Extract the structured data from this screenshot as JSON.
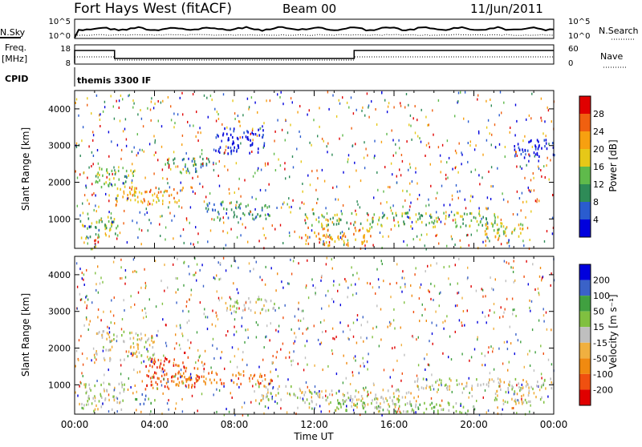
{
  "header": {
    "station": "Fort Hays West (fitACF)",
    "beam": "Beam 00",
    "date": "11/Jun/2011"
  },
  "noise_panel": {
    "left_label": "N.Sky",
    "right_label": "N.Search",
    "left_ticks": [
      "10^5",
      "10^0"
    ],
    "right_ticks": [
      "10^5",
      "10^0"
    ]
  },
  "freq_panel": {
    "left_label_top": "Freq.",
    "left_label_bottom": "[MHz]",
    "right_label": "Nave",
    "left_ticks": [
      "18",
      "8"
    ],
    "right_ticks": [
      "60",
      "0"
    ],
    "cpid_label": "CPID",
    "cpid_text": "themis 3300 IF"
  },
  "colors": {
    "power": [
      "#0000dd",
      "#2a5ccf",
      "#2e8b57",
      "#5fba4b",
      "#e6c818",
      "#f7a010",
      "#f06010",
      "#e00000"
    ],
    "velocity": [
      "#e00000",
      "#f05010",
      "#f08a10",
      "#f0b040",
      "#bfbfbf",
      "#80c040",
      "#40a040",
      "#3a62c8",
      "#0000dd"
    ]
  },
  "chart_data": [
    {
      "type": "heatmap",
      "name": "power",
      "ylabel": "Slant Range [km]",
      "yticks": [
        "1000",
        "2000",
        "3000",
        "4000"
      ],
      "ylim": [
        200,
        4500
      ],
      "xlim": [
        0,
        24
      ],
      "colorbar_label": "Power [dB]",
      "colorbar_ticks": [
        "4",
        "8",
        "12",
        "16",
        "20",
        "24",
        "28"
      ],
      "colorbar_range": [
        0,
        32
      ],
      "bands": [
        {
          "t0": 0.2,
          "t1": 1.2,
          "r0": 300,
          "r1": 500,
          "level": 7
        },
        {
          "t0": 0.2,
          "t1": 2.2,
          "r0": 500,
          "r1": 1200,
          "level": 3
        },
        {
          "t0": 1.0,
          "t1": 3.0,
          "r0": 1900,
          "r1": 2400,
          "level": 3
        },
        {
          "t0": 2.0,
          "t1": 5.5,
          "r0": 1400,
          "r1": 1900,
          "level": 5
        },
        {
          "t0": 4.5,
          "t1": 6.8,
          "r0": 2300,
          "r1": 2700,
          "level": 2
        },
        {
          "t0": 6.5,
          "t1": 9.8,
          "r0": 1000,
          "r1": 1500,
          "level": 2
        },
        {
          "t0": 7.0,
          "t1": 9.5,
          "r0": 2800,
          "r1": 3500,
          "level": 0
        },
        {
          "t0": 11.5,
          "t1": 15.0,
          "r0": 300,
          "r1": 800,
          "level": 5
        },
        {
          "t0": 11.5,
          "t1": 21.5,
          "r0": 800,
          "r1": 1200,
          "level": 3
        },
        {
          "t0": 20.5,
          "t1": 22.5,
          "r0": 500,
          "r1": 900,
          "level": 4
        },
        {
          "t0": 22.0,
          "t1": 24.0,
          "r0": 2700,
          "r1": 3200,
          "level": 0
        }
      ]
    },
    {
      "type": "heatmap",
      "name": "velocity",
      "ylabel": "Slant Range [km]",
      "xlabel": "Time UT",
      "xticks": [
        "00:00",
        "04:00",
        "08:00",
        "12:00",
        "16:00",
        "20:00",
        "00:00"
      ],
      "yticks": [
        "1000",
        "2000",
        "3000",
        "4000"
      ],
      "ylim": [
        200,
        4500
      ],
      "xlim": [
        0,
        24
      ],
      "colorbar_label": "Velocity [m s⁻¹]",
      "colorbar_ticks": [
        "200",
        "100",
        "50",
        "15",
        "-15",
        "-50",
        "-100",
        "-200"
      ],
      "colorbar_range": [
        -250,
        250
      ],
      "bands": [
        {
          "t0": 0.2,
          "t1": 2.5,
          "r0": 300,
          "r1": 1100,
          "level": 4
        },
        {
          "t0": 1.0,
          "t1": 4.0,
          "r0": 1700,
          "r1": 2500,
          "level": 4
        },
        {
          "t0": 3.5,
          "t1": 6.5,
          "r0": 900,
          "r1": 1800,
          "level": 1
        },
        {
          "t0": 5.0,
          "t1": 10.0,
          "r0": 1000,
          "r1": 1400,
          "level": 2
        },
        {
          "t0": 3.0,
          "t1": 4.0,
          "r0": 500,
          "r1": 800,
          "level": 6
        },
        {
          "t0": 9.0,
          "t1": 11.5,
          "r0": 600,
          "r1": 1000,
          "level": 4
        },
        {
          "t0": 11.5,
          "t1": 17.0,
          "r0": 400,
          "r1": 900,
          "level": 4
        },
        {
          "t0": 13.0,
          "t1": 20.0,
          "r0": 250,
          "r1": 550,
          "level": 5
        },
        {
          "t0": 17.0,
          "t1": 24.0,
          "r0": 900,
          "r1": 1200,
          "level": 4
        },
        {
          "t0": 21.0,
          "t1": 23.5,
          "r0": 500,
          "r1": 900,
          "level": 4
        },
        {
          "t0": 7.5,
          "t1": 10.0,
          "r0": 3000,
          "r1": 3400,
          "level": 4
        }
      ]
    }
  ]
}
